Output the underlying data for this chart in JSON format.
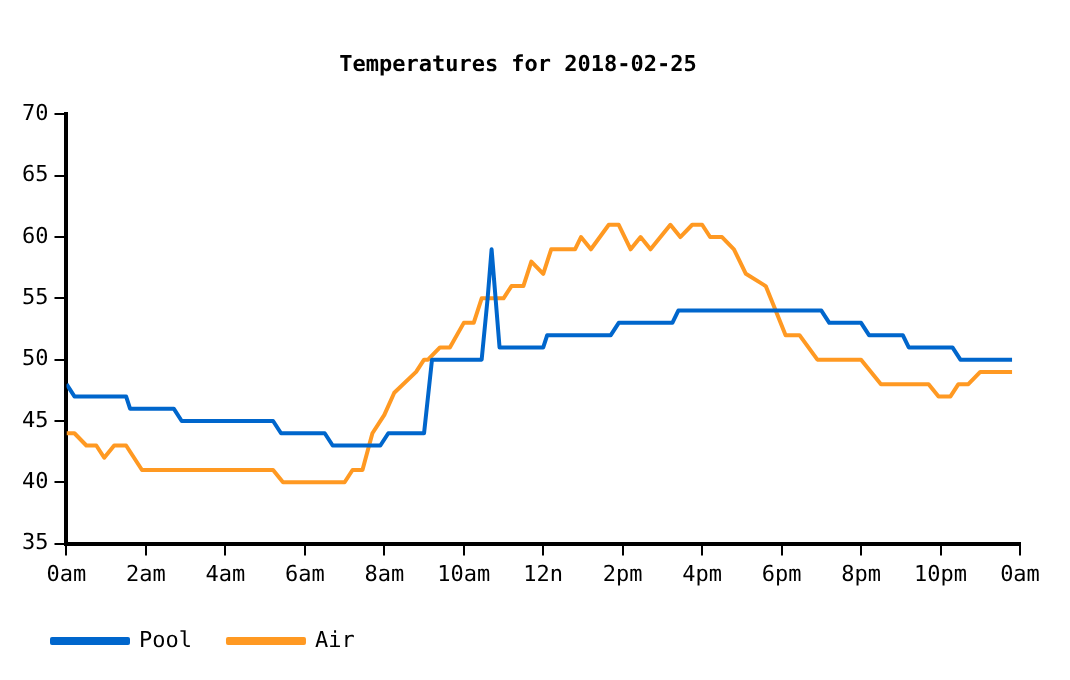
{
  "chart_data": {
    "type": "line",
    "title": "Temperatures for 2018-02-25",
    "xlim": [
      "2018-02-25T00:00",
      "2018-02-26T00:00"
    ],
    "xticks": [
      {
        "value": "2018-02-25T00:00",
        "label": "0am"
      },
      {
        "value": "2018-02-25T02:00",
        "label": "2am"
      },
      {
        "value": "2018-02-25T04:00",
        "label": "4am"
      },
      {
        "value": "2018-02-25T06:00",
        "label": "6am"
      },
      {
        "value": "2018-02-25T08:00",
        "label": "8am"
      },
      {
        "value": "2018-02-25T10:00",
        "label": "10am"
      },
      {
        "value": "2018-02-25T12:00",
        "label": "12n"
      },
      {
        "value": "2018-02-25T14:00",
        "label": "2pm"
      },
      {
        "value": "2018-02-25T16:00",
        "label": "4pm"
      },
      {
        "value": "2018-02-25T18:00",
        "label": "6pm"
      },
      {
        "value": "2018-02-25T20:00",
        "label": "8pm"
      },
      {
        "value": "2018-02-25T22:00",
        "label": "10pm"
      },
      {
        "value": "2018-02-26T00:00",
        "label": "0am"
      }
    ],
    "ylim": [
      35,
      70
    ],
    "yticks": [
      35,
      40,
      45,
      50,
      55,
      60,
      65,
      70
    ],
    "grid": false,
    "legend": "bottom left",
    "marker": "none",
    "line_style": "solid",
    "series": [
      {
        "name": "Pool",
        "color": "#0066cc",
        "x": [
          "2018-02-25T00:00",
          "2018-02-25T00:12",
          "2018-02-25T01:30",
          "2018-02-25T01:36",
          "2018-02-25T02:42",
          "2018-02-25T02:54",
          "2018-02-25T05:12",
          "2018-02-25T05:24",
          "2018-02-25T06:30",
          "2018-02-25T06:42",
          "2018-02-25T07:54",
          "2018-02-25T08:06",
          "2018-02-25T09:00",
          "2018-02-25T09:12",
          "2018-02-25T10:27",
          "2018-02-25T10:36",
          "2018-02-25T10:42",
          "2018-02-25T10:54",
          "2018-02-25T12:00",
          "2018-02-25T12:06",
          "2018-02-25T13:42",
          "2018-02-25T13:54",
          "2018-02-25T15:15",
          "2018-02-25T15:24",
          "2018-02-25T19:00",
          "2018-02-25T19:12",
          "2018-02-25T20:00",
          "2018-02-25T20:12",
          "2018-02-25T21:03",
          "2018-02-25T21:12",
          "2018-02-25T22:18",
          "2018-02-25T22:30",
          "2018-02-25T23:48"
        ],
        "values": [
          48,
          47,
          47,
          46,
          46,
          45,
          45,
          44,
          44,
          43,
          43,
          44,
          44,
          50,
          50,
          55,
          59,
          51,
          51,
          52,
          52,
          53,
          53,
          54,
          54,
          53,
          53,
          52,
          52,
          51,
          51,
          50,
          50
        ]
      },
      {
        "name": "Air",
        "color": "#ff9922",
        "x": [
          "2018-02-25T00:00",
          "2018-02-25T00:12",
          "2018-02-25T00:30",
          "2018-02-25T00:45",
          "2018-02-25T00:57",
          "2018-02-25T01:12",
          "2018-02-25T01:30",
          "2018-02-25T01:54",
          "2018-02-25T05:12",
          "2018-02-25T05:27",
          "2018-02-25T07:00",
          "2018-02-25T07:12",
          "2018-02-25T07:27",
          "2018-02-25T07:42",
          "2018-02-25T08:00",
          "2018-02-25T08:15",
          "2018-02-25T08:48",
          "2018-02-25T09:00",
          "2018-02-25T09:06",
          "2018-02-25T09:24",
          "2018-02-25T09:39",
          "2018-02-25T10:00",
          "2018-02-25T10:15",
          "2018-02-25T10:27",
          "2018-02-25T11:00",
          "2018-02-25T11:12",
          "2018-02-25T11:30",
          "2018-02-25T11:42",
          "2018-02-25T12:00",
          "2018-02-25T12:12",
          "2018-02-25T12:48",
          "2018-02-25T12:57",
          "2018-02-25T13:12",
          "2018-02-25T13:39",
          "2018-02-25T13:54",
          "2018-02-25T14:12",
          "2018-02-25T14:27",
          "2018-02-25T14:42",
          "2018-02-25T15:12",
          "2018-02-25T15:27",
          "2018-02-25T15:45",
          "2018-02-25T16:00",
          "2018-02-25T16:12",
          "2018-02-25T16:30",
          "2018-02-25T16:48",
          "2018-02-25T17:06",
          "2018-02-25T17:36",
          "2018-02-25T17:51",
          "2018-02-25T18:06",
          "2018-02-25T18:27",
          "2018-02-25T18:54",
          "2018-02-25T20:00",
          "2018-02-25T20:30",
          "2018-02-25T21:42",
          "2018-02-25T21:57",
          "2018-02-25T22:15",
          "2018-02-25T22:27",
          "2018-02-25T22:42",
          "2018-02-25T23:00",
          "2018-02-25T23:48"
        ],
        "values": [
          44,
          44,
          43,
          43,
          42,
          43,
          43,
          41,
          41,
          40,
          40,
          41,
          41,
          44,
          45.5,
          47.3,
          49,
          50,
          50,
          51,
          51,
          53,
          53,
          55,
          55,
          56,
          56,
          58,
          57,
          59,
          59,
          60,
          59,
          61,
          61,
          59,
          60,
          59,
          61,
          60,
          61,
          61,
          60,
          60,
          59,
          57,
          56,
          54,
          52,
          52,
          50,
          50,
          48,
          48,
          47,
          47,
          48,
          48,
          49,
          49
        ]
      }
    ]
  }
}
